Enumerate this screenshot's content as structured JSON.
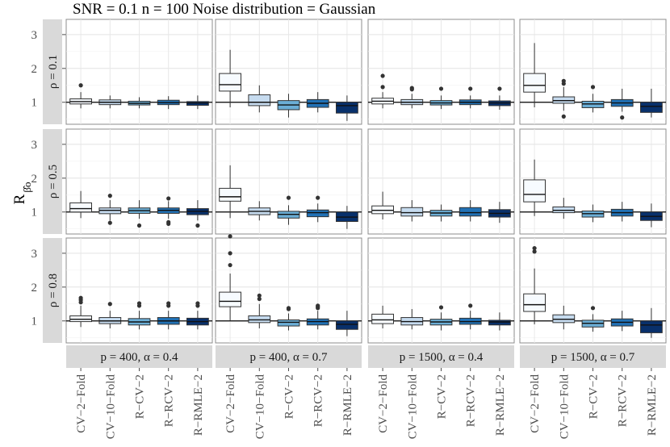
{
  "chart_data": {
    "type": "boxplot",
    "title": "SNR = 0.1 n = 100 Noise distribution = Gaussian",
    "ylabel_main": "R",
    "ylabel_sub": "β̂o",
    "ylim": [
      0.35,
      3.45
    ],
    "yticks": [
      "1",
      "2",
      "3"
    ],
    "reference_line": 1,
    "methods": [
      "CV−2−Fold",
      "CV−10−Fold",
      "R−CV−2",
      "R−RCV−2",
      "R−RMLE−2"
    ],
    "method_colors": [
      "#f7fbff",
      "#c6dbef",
      "#6baed6",
      "#2171b5",
      "#08306b"
    ],
    "columns": [
      "p = 400, α = 0.4",
      "p = 400, α = 0.7",
      "p = 1500, α = 0.4",
      "p = 1500, α = 0.7"
    ],
    "rows": [
      "ρ = 0.1",
      "ρ = 0.5",
      "ρ = 0.8"
    ],
    "panels": [
      [
        [
          {
            "q1": 0.95,
            "med": 1.02,
            "q3": 1.1,
            "lo": 0.82,
            "hi": 1.3,
            "out": [
              1.5
            ]
          },
          {
            "q1": 0.93,
            "med": 1.0,
            "q3": 1.07,
            "lo": 0.82,
            "hi": 1.2,
            "out": []
          },
          {
            "q1": 0.92,
            "med": 0.97,
            "q3": 1.03,
            "lo": 0.82,
            "hi": 1.15,
            "out": []
          },
          {
            "q1": 0.93,
            "med": 0.99,
            "q3": 1.06,
            "lo": 0.8,
            "hi": 1.18,
            "out": []
          },
          {
            "q1": 0.91,
            "med": 0.98,
            "q3": 1.02,
            "lo": 0.8,
            "hi": 1.2,
            "out": []
          }
        ],
        [
          {
            "q1": 1.33,
            "med": 1.52,
            "q3": 1.85,
            "lo": 0.85,
            "hi": 2.55,
            "out": []
          },
          {
            "q1": 0.9,
            "med": 1.0,
            "q3": 1.22,
            "lo": 0.7,
            "hi": 1.5,
            "out": []
          },
          {
            "q1": 0.78,
            "med": 0.92,
            "q3": 1.05,
            "lo": 0.55,
            "hi": 1.25,
            "out": []
          },
          {
            "q1": 0.85,
            "med": 0.97,
            "q3": 1.08,
            "lo": 0.7,
            "hi": 1.3,
            "out": []
          },
          {
            "q1": 0.68,
            "med": 0.9,
            "q3": 1.0,
            "lo": 0.45,
            "hi": 1.2,
            "out": []
          }
        ],
        [
          {
            "q1": 0.95,
            "med": 1.03,
            "q3": 1.12,
            "lo": 0.82,
            "hi": 1.3,
            "out": [
              1.45,
              1.78
            ]
          },
          {
            "q1": 0.93,
            "med": 1.0,
            "q3": 1.08,
            "lo": 0.82,
            "hi": 1.25,
            "out": [
              1.38,
              1.42
            ]
          },
          {
            "q1": 0.92,
            "med": 0.98,
            "q3": 1.05,
            "lo": 0.8,
            "hi": 1.2,
            "out": [
              1.4
            ]
          },
          {
            "q1": 0.93,
            "med": 1.0,
            "q3": 1.07,
            "lo": 0.82,
            "hi": 1.2,
            "out": [
              1.4
            ]
          },
          {
            "q1": 0.9,
            "med": 0.98,
            "q3": 1.04,
            "lo": 0.78,
            "hi": 1.2,
            "out": [
              1.4
            ]
          }
        ],
        [
          {
            "q1": 1.3,
            "med": 1.5,
            "q3": 1.85,
            "lo": 0.85,
            "hi": 2.75,
            "out": []
          },
          {
            "q1": 0.97,
            "med": 1.05,
            "q3": 1.16,
            "lo": 0.75,
            "hi": 1.45,
            "out": [
              0.58,
              1.55,
              1.63
            ]
          },
          {
            "q1": 0.84,
            "med": 0.95,
            "q3": 1.03,
            "lo": 0.7,
            "hi": 1.25,
            "out": [
              1.45
            ]
          },
          {
            "q1": 0.88,
            "med": 0.98,
            "q3": 1.08,
            "lo": 0.72,
            "hi": 1.4,
            "out": [
              0.55
            ]
          },
          {
            "q1": 0.7,
            "med": 0.88,
            "q3": 1.0,
            "lo": 0.55,
            "hi": 1.4,
            "out": []
          }
        ]
      ],
      [
        [
          {
            "q1": 1.0,
            "med": 1.1,
            "q3": 1.27,
            "lo": 0.82,
            "hi": 1.62,
            "out": []
          },
          {
            "q1": 0.95,
            "med": 1.05,
            "q3": 1.12,
            "lo": 0.75,
            "hi": 1.35,
            "out": [
              0.68,
              1.48
            ]
          },
          {
            "q1": 0.96,
            "med": 1.04,
            "q3": 1.12,
            "lo": 0.8,
            "hi": 1.35,
            "out": [
              0.6
            ]
          },
          {
            "q1": 0.96,
            "med": 1.05,
            "q3": 1.12,
            "lo": 0.8,
            "hi": 1.32,
            "out": [
              0.65,
              0.7,
              1.4
            ]
          },
          {
            "q1": 0.92,
            "med": 1.02,
            "q3": 1.1,
            "lo": 0.75,
            "hi": 1.35,
            "out": [
              0.6
            ]
          }
        ],
        [
          {
            "q1": 1.32,
            "med": 1.45,
            "q3": 1.7,
            "lo": 0.82,
            "hi": 2.38,
            "out": []
          },
          {
            "q1": 0.92,
            "med": 1.02,
            "q3": 1.12,
            "lo": 0.75,
            "hi": 1.32,
            "out": []
          },
          {
            "q1": 0.82,
            "med": 0.93,
            "q3": 1.02,
            "lo": 0.62,
            "hi": 1.2,
            "out": [
              1.42
            ]
          },
          {
            "q1": 0.86,
            "med": 0.98,
            "q3": 1.06,
            "lo": 0.7,
            "hi": 1.25,
            "out": [
              1.42
            ]
          },
          {
            "q1": 0.72,
            "med": 0.85,
            "q3": 1.0,
            "lo": 0.5,
            "hi": 1.18,
            "out": []
          }
        ],
        [
          {
            "q1": 0.95,
            "med": 1.05,
            "q3": 1.18,
            "lo": 0.78,
            "hi": 1.6,
            "out": []
          },
          {
            "q1": 0.88,
            "med": 0.98,
            "q3": 1.13,
            "lo": 0.72,
            "hi": 1.35,
            "out": []
          },
          {
            "q1": 0.88,
            "med": 0.97,
            "q3": 1.05,
            "lo": 0.72,
            "hi": 1.22,
            "out": []
          },
          {
            "q1": 0.88,
            "med": 0.98,
            "q3": 1.13,
            "lo": 0.72,
            "hi": 1.35,
            "out": []
          },
          {
            "q1": 0.85,
            "med": 0.96,
            "q3": 1.07,
            "lo": 0.68,
            "hi": 1.3,
            "out": []
          }
        ],
        [
          {
            "q1": 1.3,
            "med": 1.52,
            "q3": 1.95,
            "lo": 0.88,
            "hi": 2.55,
            "out": []
          },
          {
            "q1": 0.98,
            "med": 1.05,
            "q3": 1.15,
            "lo": 0.8,
            "hi": 1.42,
            "out": []
          },
          {
            "q1": 0.85,
            "med": 0.95,
            "q3": 1.03,
            "lo": 0.7,
            "hi": 1.22,
            "out": []
          },
          {
            "q1": 0.88,
            "med": 0.98,
            "q3": 1.08,
            "lo": 0.72,
            "hi": 1.3,
            "out": []
          },
          {
            "q1": 0.75,
            "med": 0.87,
            "q3": 1.0,
            "lo": 0.55,
            "hi": 1.25,
            "out": []
          }
        ]
      ],
      [
        [
          {
            "q1": 0.98,
            "med": 1.05,
            "q3": 1.15,
            "lo": 0.82,
            "hi": 1.45,
            "out": [
              1.55,
              1.62,
              1.68
            ]
          },
          {
            "q1": 0.92,
            "med": 1.0,
            "q3": 1.1,
            "lo": 0.78,
            "hi": 1.3,
            "out": [
              1.5
            ]
          },
          {
            "q1": 0.88,
            "med": 0.97,
            "q3": 1.07,
            "lo": 0.75,
            "hi": 1.3,
            "out": [
              1.45,
              1.52
            ]
          },
          {
            "q1": 0.9,
            "med": 1.0,
            "q3": 1.1,
            "lo": 0.75,
            "hi": 1.3,
            "out": [
              1.45,
              1.52
            ]
          },
          {
            "q1": 0.88,
            "med": 0.98,
            "q3": 1.08,
            "lo": 0.75,
            "hi": 1.3,
            "out": [
              1.45,
              1.52
            ]
          }
        ],
        [
          {
            "q1": 1.42,
            "med": 1.58,
            "q3": 1.85,
            "lo": 1.0,
            "hi": 2.4,
            "out": [
              2.65,
              3.0,
              3.5
            ]
          },
          {
            "q1": 0.95,
            "med": 1.03,
            "q3": 1.15,
            "lo": 0.78,
            "hi": 1.5,
            "out": [
              1.65,
              1.75
            ]
          },
          {
            "q1": 0.85,
            "med": 0.96,
            "q3": 1.03,
            "lo": 0.72,
            "hi": 1.22,
            "out": [
              1.35,
              1.38
            ]
          },
          {
            "q1": 0.88,
            "med": 0.98,
            "q3": 1.06,
            "lo": 0.75,
            "hi": 1.3,
            "out": [
              1.38,
              1.42,
              1.45
            ]
          },
          {
            "q1": 0.75,
            "med": 0.9,
            "q3": 1.0,
            "lo": 0.55,
            "hi": 1.3,
            "out": []
          }
        ],
        [
          {
            "q1": 0.92,
            "med": 1.03,
            "q3": 1.2,
            "lo": 0.78,
            "hi": 1.45,
            "out": []
          },
          {
            "q1": 0.88,
            "med": 0.98,
            "q3": 1.1,
            "lo": 0.75,
            "hi": 1.35,
            "out": []
          },
          {
            "q1": 0.88,
            "med": 0.97,
            "q3": 1.05,
            "lo": 0.72,
            "hi": 1.25,
            "out": [
              1.4
            ]
          },
          {
            "q1": 0.9,
            "med": 0.98,
            "q3": 1.08,
            "lo": 0.75,
            "hi": 1.3,
            "out": [
              1.45
            ]
          },
          {
            "q1": 0.88,
            "med": 0.97,
            "q3": 1.02,
            "lo": 0.72,
            "hi": 1.25,
            "out": []
          }
        ],
        [
          {
            "q1": 1.28,
            "med": 1.48,
            "q3": 1.8,
            "lo": 0.9,
            "hi": 2.55,
            "out": [
              3.05,
              3.15
            ]
          },
          {
            "q1": 0.95,
            "med": 1.05,
            "q3": 1.18,
            "lo": 0.75,
            "hi": 1.45,
            "out": []
          },
          {
            "q1": 0.82,
            "med": 0.93,
            "q3": 1.02,
            "lo": 0.68,
            "hi": 1.2,
            "out": [
              1.38
            ]
          },
          {
            "q1": 0.85,
            "med": 0.96,
            "q3": 1.06,
            "lo": 0.7,
            "hi": 1.3,
            "out": []
          },
          {
            "q1": 0.65,
            "med": 0.88,
            "q3": 1.0,
            "lo": 0.5,
            "hi": 1.38,
            "out": []
          }
        ]
      ]
    ]
  }
}
